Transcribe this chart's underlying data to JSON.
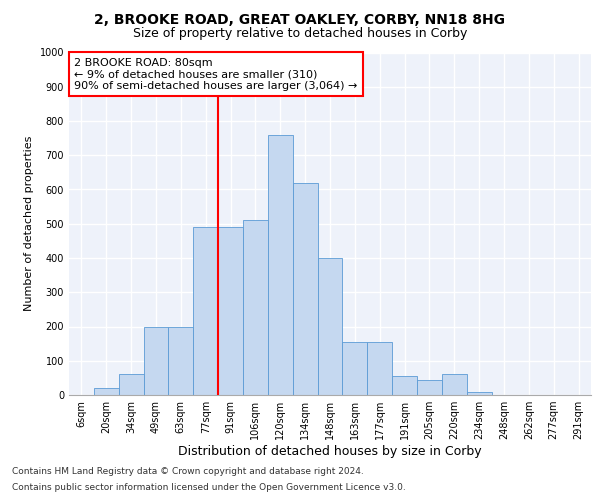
{
  "title1": "2, BROOKE ROAD, GREAT OAKLEY, CORBY, NN18 8HG",
  "title2": "Size of property relative to detached houses in Corby",
  "xlabel": "Distribution of detached houses by size in Corby",
  "ylabel": "Number of detached properties",
  "categories": [
    "6sqm",
    "20sqm",
    "34sqm",
    "49sqm",
    "63sqm",
    "77sqm",
    "91sqm",
    "106sqm",
    "120sqm",
    "134sqm",
    "148sqm",
    "163sqm",
    "177sqm",
    "191sqm",
    "205sqm",
    "220sqm",
    "234sqm",
    "248sqm",
    "262sqm",
    "277sqm",
    "291sqm"
  ],
  "values": [
    0,
    20,
    60,
    200,
    200,
    490,
    490,
    510,
    760,
    620,
    400,
    155,
    155,
    55,
    45,
    60,
    10,
    0,
    0,
    0,
    0
  ],
  "bar_color": "#c5d8f0",
  "bar_edge_color": "#5b9bd5",
  "vline_color": "red",
  "annotation_text": "2 BROOKE ROAD: 80sqm\n← 9% of detached houses are smaller (310)\n90% of semi-detached houses are larger (3,064) →",
  "annotation_box_color": "white",
  "annotation_box_edge": "red",
  "ylim": [
    0,
    1000
  ],
  "yticks": [
    0,
    100,
    200,
    300,
    400,
    500,
    600,
    700,
    800,
    900,
    1000
  ],
  "footnote1": "Contains HM Land Registry data © Crown copyright and database right 2024.",
  "footnote2": "Contains public sector information licensed under the Open Government Licence v3.0.",
  "bg_color": "#eef2fa",
  "title1_fontsize": 10,
  "title2_fontsize": 9,
  "xlabel_fontsize": 9,
  "ylabel_fontsize": 8,
  "tick_fontsize": 7,
  "annot_fontsize": 8
}
